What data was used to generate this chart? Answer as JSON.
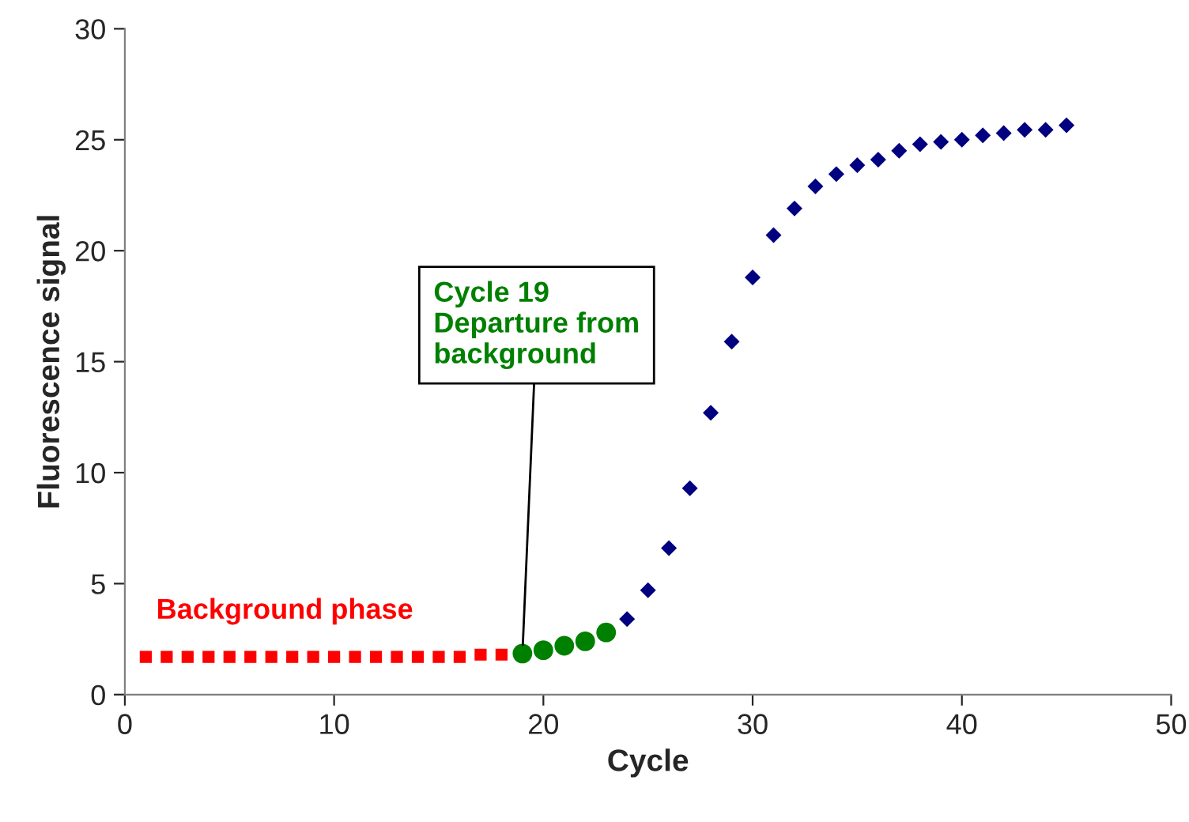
{
  "chart_data": {
    "type": "scatter",
    "xlabel": "Cycle",
    "ylabel": "Fluorescence signal",
    "xlim": [
      0,
      50
    ],
    "xticks": [
      0,
      10,
      20,
      30,
      40,
      50
    ],
    "ylim": [
      0,
      30
    ],
    "yticks": [
      0,
      5,
      10,
      15,
      20,
      25,
      30
    ],
    "grid": false,
    "legend": false,
    "series": [
      {
        "color": "#ff0000",
        "marker": "square",
        "x": [
          1,
          2,
          3,
          4,
          5,
          6,
          7,
          8,
          9,
          10,
          11,
          12,
          13,
          14,
          15,
          16,
          17,
          18
        ],
        "values": [
          1.7,
          1.7,
          1.7,
          1.7,
          1.7,
          1.7,
          1.7,
          1.7,
          1.7,
          1.7,
          1.7,
          1.7,
          1.7,
          1.7,
          1.7,
          1.7,
          1.8,
          1.8
        ]
      },
      {
        "color": "#008000",
        "marker": "circle",
        "x": [
          19,
          20,
          21,
          22,
          23
        ],
        "values": [
          1.85,
          2.0,
          2.2,
          2.4,
          2.8
        ]
      },
      {
        "color": "#000080",
        "marker": "diamond",
        "x": [
          24,
          25,
          26,
          27,
          28,
          29,
          30,
          31,
          32,
          33,
          34,
          35,
          36,
          37,
          38,
          39,
          40,
          41,
          42,
          43,
          44,
          45
        ],
        "values": [
          3.4,
          4.7,
          6.6,
          9.3,
          12.7,
          15.9,
          18.8,
          20.7,
          21.9,
          22.9,
          23.45,
          23.85,
          24.1,
          24.5,
          24.8,
          24.9,
          25.0,
          25.2,
          25.3,
          25.45,
          25.45,
          25.65
        ]
      }
    ],
    "annotations": [
      {
        "text": "Cycle 19\nDeparture from\nbackground",
        "x": 19,
        "y": 1.85
      },
      "Background phase"
    ]
  }
}
